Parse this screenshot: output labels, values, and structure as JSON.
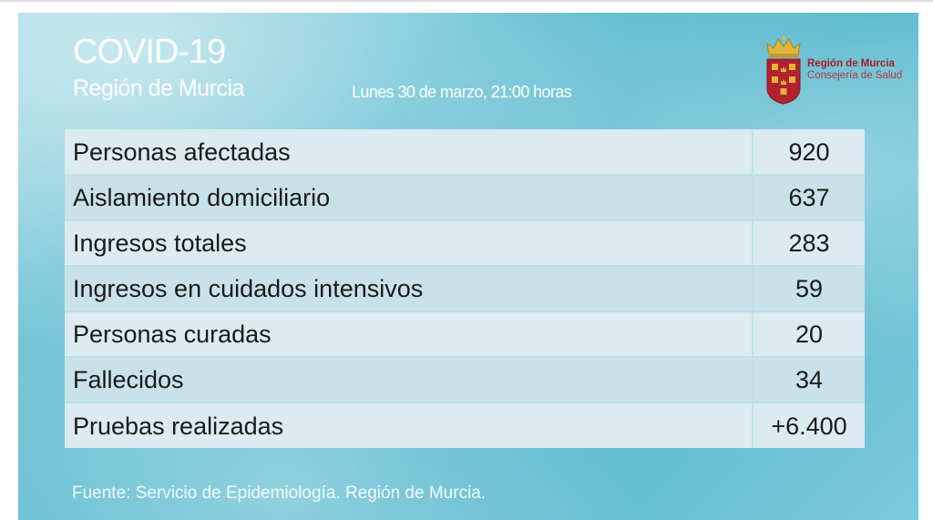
{
  "header": {
    "title": "COVID-19",
    "region": "Región de Murcia",
    "date": "Lunes 30 de marzo, 21:00 horas"
  },
  "logo": {
    "icon": "region-murcia-coat-of-arms-icon",
    "name": "Región de Murcia",
    "department": "Consejería de Salud"
  },
  "table": {
    "rows": [
      {
        "label": "Personas afectadas",
        "value": "920"
      },
      {
        "label": "Aislamiento domiciliario",
        "value": "637"
      },
      {
        "label": "Ingresos totales",
        "value": "283"
      },
      {
        "label": "Ingresos en cuidados intensivos",
        "value": "59"
      },
      {
        "label": "Personas curadas",
        "value": "20"
      },
      {
        "label": "Fallecidos",
        "value": "34"
      },
      {
        "label": "Pruebas realizadas",
        "value": "+6.400"
      }
    ]
  },
  "footer": {
    "source": "Fuente: Servicio de Epidemiología. Región de Murcia."
  },
  "colors": {
    "background": "#63bed2",
    "row_light": "#dbebef",
    "row_dark": "#c9e2e9",
    "logo_red": "#a51d2a",
    "crown_gold": "#e0b53a"
  }
}
